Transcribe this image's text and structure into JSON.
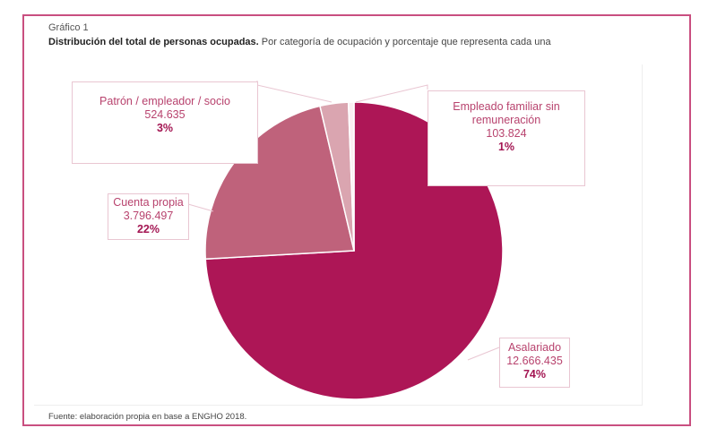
{
  "header": {
    "chart_number": "Gráfico 1",
    "title_bold": "Distribución del total de personas ocupadas.",
    "title_rest": " Por categoría de ocupación y porcentaje que representa cada una"
  },
  "footer": {
    "source": "Fuente: elaboración propia en base a ENGHO 2018."
  },
  "chart_data": {
    "type": "pie",
    "title": "Distribución del total de personas ocupadas",
    "start": "12 o'clock, clockwise",
    "slices": [
      {
        "label": "Asalariado",
        "value_text": "12.666.435",
        "value": 12666435,
        "percent_text": "74%",
        "percent": 74,
        "color": "#ad1656"
      },
      {
        "label": "Cuenta propia",
        "value_text": "3.796.497",
        "value": 3796497,
        "percent_text": "22%",
        "percent": 22,
        "color": "#bf627b"
      },
      {
        "label": "Patrón / empleador / socio",
        "value_text": "524.635",
        "value": 524635,
        "percent_text": "3%",
        "percent": 3,
        "color": "#daa5b0"
      },
      {
        "label": "Empleado familiar sin remuneración",
        "label_line1": "Empleado familiar sin",
        "label_line2": "remuneración",
        "value_text": "103.824",
        "value": 103824,
        "percent_text": "1%",
        "percent": 1,
        "color": "#fbeef2"
      }
    ]
  }
}
